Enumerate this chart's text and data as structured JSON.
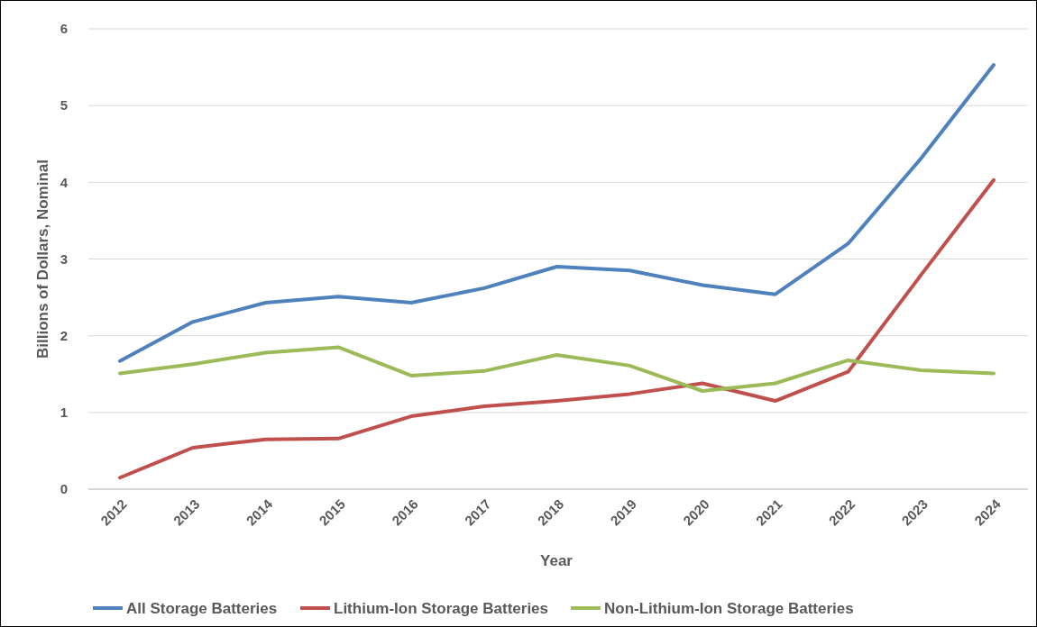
{
  "chart_data": {
    "type": "line",
    "xlabel": "Year",
    "ylabel": "Billions of Dollars, Nominal",
    "categories": [
      "2012",
      "2013",
      "2014",
      "2015",
      "2016",
      "2017",
      "2018",
      "2019",
      "2020",
      "2021",
      "2022",
      "2023",
      "2024"
    ],
    "series": [
      {
        "name": "All Storage Batteries",
        "color": "#4f81bd",
        "values": [
          1.67,
          2.18,
          2.43,
          2.51,
          2.43,
          2.62,
          2.9,
          2.85,
          2.66,
          2.54,
          3.2,
          4.31,
          5.53
        ]
      },
      {
        "name": "Lithium-Ion Storage Batteries",
        "color": "#c0504d",
        "values": [
          0.15,
          0.54,
          0.65,
          0.66,
          0.95,
          1.08,
          1.15,
          1.24,
          1.38,
          1.15,
          1.53,
          2.79,
          4.03
        ]
      },
      {
        "name": "Non-Lithium-Ion Storage Batteries",
        "color": "#9bbb59",
        "values": [
          1.51,
          1.63,
          1.78,
          1.85,
          1.48,
          1.54,
          1.75,
          1.61,
          1.28,
          1.38,
          1.68,
          1.55,
          1.51
        ]
      }
    ],
    "ylim": [
      0,
      6
    ],
    "yticks": [
      0,
      1,
      2,
      3,
      4,
      5,
      6
    ],
    "grid": "y",
    "legend": "bottom",
    "marker": "none",
    "line_style": "solid"
  }
}
